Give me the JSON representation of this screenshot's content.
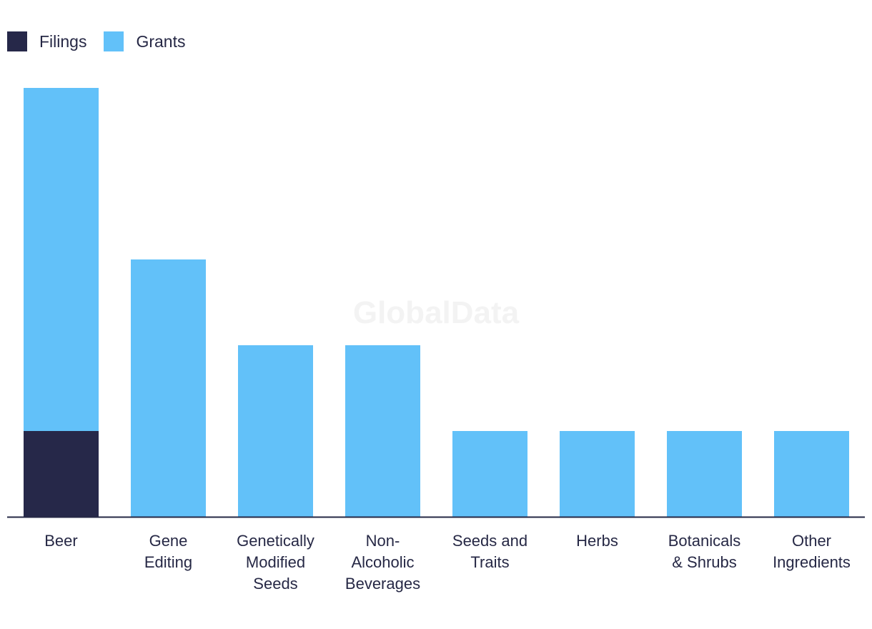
{
  "chart_data": {
    "type": "bar",
    "stacked": true,
    "categories": [
      [
        "Beer"
      ],
      [
        "Gene",
        "Editing"
      ],
      [
        "Genetically",
        "Modified",
        "Seeds"
      ],
      [
        "Non-",
        "Alcoholic",
        "Beverages"
      ],
      [
        "Seeds and",
        "Traits"
      ],
      [
        "Herbs"
      ],
      [
        "Botanicals",
        "& Shrubs"
      ],
      [
        "Other",
        "Ingredients"
      ]
    ],
    "series": [
      {
        "name": "Filings",
        "color": "#262849",
        "values": [
          1,
          0,
          0,
          0,
          0,
          0,
          0,
          0
        ]
      },
      {
        "name": "Grants",
        "color": "#62c1f9",
        "values": [
          4,
          3,
          2,
          2,
          1,
          1,
          1,
          1
        ]
      }
    ],
    "ylim": [
      0,
      5
    ],
    "grid": false,
    "legend_placement": "top-left",
    "watermark": "GlobalData"
  }
}
